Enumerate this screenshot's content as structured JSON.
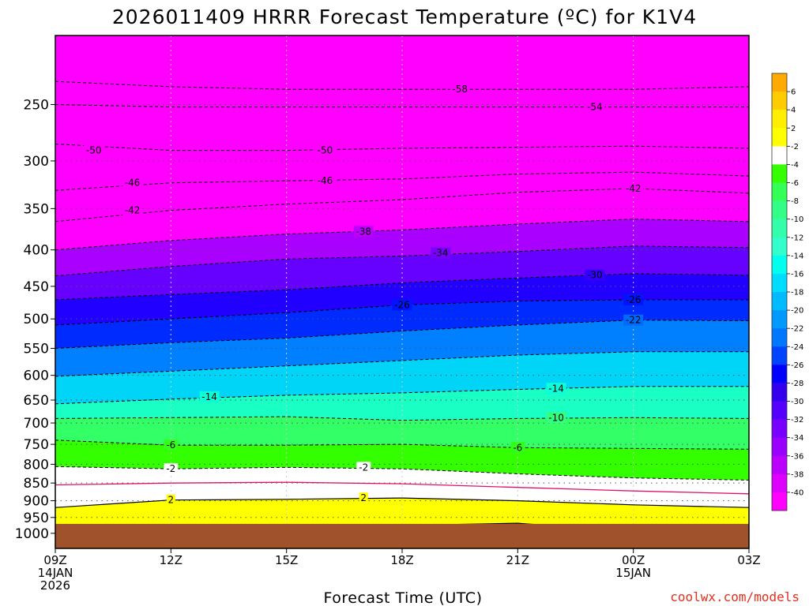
{
  "chart_data": {
    "type": "heatmap",
    "title": "2026011409 HRRR Forecast Temperature (ºC) for K1V4",
    "xlabel": "Forecast Time (UTC)",
    "ylabel": "",
    "credit": "coolwx.com/models",
    "y_scale": "log-pressure",
    "ylim": [
      1050,
      200
    ],
    "y_ticks": [
      250,
      300,
      350,
      400,
      450,
      500,
      550,
      600,
      650,
      700,
      750,
      800,
      850,
      900,
      950,
      1000
    ],
    "y_tick_labels": [
      "250",
      "300",
      "350",
      "400",
      "450",
      "500",
      "550",
      "600",
      "650",
      "700",
      "750",
      "800",
      "850",
      "900",
      "950",
      "1000"
    ],
    "x_range_hours": [
      9,
      27
    ],
    "x_ticks": [
      {
        "hour": 9,
        "lines": [
          "09Z",
          "14JAN",
          "2026"
        ]
      },
      {
        "hour": 12,
        "lines": [
          "12Z"
        ]
      },
      {
        "hour": 15,
        "lines": [
          "15Z"
        ]
      },
      {
        "hour": 18,
        "lines": [
          "18Z"
        ]
      },
      {
        "hour": 21,
        "lines": [
          "21Z"
        ]
      },
      {
        "hour": 24,
        "lines": [
          "00Z",
          "15JAN"
        ]
      },
      {
        "hour": 27,
        "lines": [
          "03Z"
        ]
      }
    ],
    "grid": true,
    "ground_color": "#a0522d",
    "ground_pressure": 970,
    "isotherm_hours": [
      9,
      12,
      15,
      18,
      21,
      24,
      27
    ],
    "isotherms": [
      {
        "t": -58,
        "p": [
          232,
          236,
          238,
          238,
          238,
          238,
          236
        ]
      },
      {
        "t": -54,
        "p": [
          250,
          252,
          252,
          252,
          252,
          252,
          252
        ]
      },
      {
        "t": -50,
        "p": [
          284,
          290,
          290,
          288,
          287,
          286,
          288
        ]
      },
      {
        "t": -46,
        "p": [
          330,
          322,
          320,
          318,
          313,
          311,
          315
        ]
      },
      {
        "t": -42,
        "p": [
          365,
          352,
          345,
          340,
          332,
          328,
          333
        ]
      },
      {
        "t": -38,
        "p": [
          400,
          388,
          380,
          375,
          368,
          362,
          365
        ]
      },
      {
        "t": -34,
        "p": [
          435,
          422,
          412,
          408,
          402,
          395,
          397
        ]
      },
      {
        "t": -30,
        "p": [
          470,
          462,
          455,
          445,
          438,
          432,
          434
        ]
      },
      {
        "t": -26,
        "p": [
          510,
          500,
          490,
          478,
          472,
          470,
          470
        ]
      },
      {
        "t": -22,
        "p": [
          550,
          540,
          532,
          520,
          510,
          502,
          503
        ]
      },
      {
        "t": -18,
        "p": [
          602,
          592,
          582,
          572,
          562,
          556,
          556
        ]
      },
      {
        "t": -14,
        "p": [
          658,
          648,
          640,
          635,
          628,
          622,
          622
        ]
      },
      {
        "t": -10,
        "p": [
          690,
          688,
          686,
          694,
          690,
          688,
          690
        ]
      },
      {
        "t": -6,
        "p": [
          740,
          752,
          752,
          750,
          758,
          760,
          762
        ]
      },
      {
        "t": -2,
        "p": [
          806,
          812,
          808,
          812,
          825,
          836,
          842
        ]
      },
      {
        "t": 0,
        "p": [
          855,
          850,
          848,
          852,
          862,
          872,
          880
        ]
      },
      {
        "t": 2,
        "p": [
          920,
          898,
          896,
          892,
          900,
          912,
          920
        ]
      },
      {
        "t": 4,
        "p": [
          990,
          990,
          990,
          975,
          968,
          995,
          995
        ]
      }
    ],
    "contour_labels": [
      {
        "text": "-58",
        "hour": 19.5,
        "p": 238
      },
      {
        "text": "-54",
        "hour": 23.0,
        "p": 252
      },
      {
        "text": "-50",
        "hour": 10.0,
        "p": 290
      },
      {
        "text": "-50",
        "hour": 16.0,
        "p": 290
      },
      {
        "text": "-46",
        "hour": 11.0,
        "p": 322
      },
      {
        "text": "-46",
        "hour": 16.0,
        "p": 320
      },
      {
        "text": "-42",
        "hour": 11.0,
        "p": 352
      },
      {
        "text": "-42",
        "hour": 24.0,
        "p": 328
      },
      {
        "text": "-38",
        "hour": 17.0,
        "p": 377
      },
      {
        "text": "-34",
        "hour": 19.0,
        "p": 404
      },
      {
        "text": "-30",
        "hour": 23.0,
        "p": 434
      },
      {
        "text": "-26",
        "hour": 18.0,
        "p": 478
      },
      {
        "text": "-26",
        "hour": 24.0,
        "p": 470
      },
      {
        "text": "-22",
        "hour": 24.0,
        "p": 502
      },
      {
        "text": "-14",
        "hour": 13.0,
        "p": 643
      },
      {
        "text": "-14",
        "hour": 22.0,
        "p": 626
      },
      {
        "text": "-10",
        "hour": 22.0,
        "p": 688
      },
      {
        "text": "-6",
        "hour": 12.0,
        "p": 752
      },
      {
        "text": "-6",
        "hour": 21.0,
        "p": 758
      },
      {
        "text": "-2",
        "hour": 12.0,
        "p": 812
      },
      {
        "text": "-2",
        "hour": 17.0,
        "p": 808
      },
      {
        "text": "2",
        "hour": 12.0,
        "p": 898
      },
      {
        "text": "2",
        "hour": 17.0,
        "p": 892
      }
    ],
    "colorbar": {
      "labels": [
        "6",
        "4",
        "2",
        "-2",
        "-4",
        "-6",
        "-8",
        "-10",
        "-12",
        "-14",
        "-16",
        "-18",
        "-20",
        "-22",
        "-24",
        "-26",
        "-28",
        "-30",
        "-32",
        "-34",
        "-36",
        "-38",
        "-40"
      ],
      "colors": [
        "#ffaa00",
        "#ffcc00",
        "#ffee00",
        "#ffff00",
        "#ffffff",
        "#33ff00",
        "#33ff55",
        "#33ff88",
        "#33ffaa",
        "#33ffcc",
        "#00ffee",
        "#00ddff",
        "#00bbff",
        "#0099ff",
        "#0077ff",
        "#0044ff",
        "#0000ff",
        "#3300ee",
        "#5500ff",
        "#7700ff",
        "#9900ff",
        "#bb00ff",
        "#dd00ff",
        "#ff00ff"
      ]
    }
  }
}
